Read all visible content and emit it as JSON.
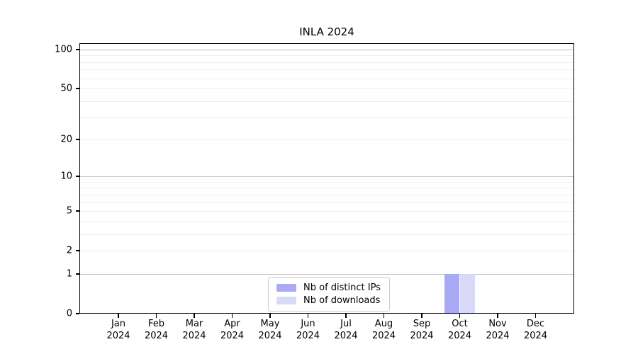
{
  "chart_data": {
    "type": "bar",
    "title": "INLA 2024",
    "categories": [
      "Jan\n2024",
      "Feb\n2024",
      "Mar\n2024",
      "Apr\n2024",
      "May\n2024",
      "Jun\n2024",
      "Jul\n2024",
      "Aug\n2024",
      "Sep\n2024",
      "Oct\n2024",
      "Nov\n2024",
      "Dec\n2024"
    ],
    "series": [
      {
        "name": "Nb of distinct IPs",
        "color": "#a9a9f4",
        "values": [
          0,
          0,
          0,
          0,
          0,
          0,
          0,
          0,
          0,
          1,
          0,
          0
        ]
      },
      {
        "name": "Nb of downloads",
        "color": "#dadaf8",
        "values": [
          0,
          0,
          0,
          0,
          0,
          0,
          0,
          0,
          0,
          1,
          0,
          0
        ]
      }
    ],
    "xlabel": "",
    "ylabel": "",
    "yscale": "log1p",
    "ylim": [
      0,
      112
    ],
    "yticks": [
      0,
      1,
      2,
      5,
      10,
      20,
      50,
      100
    ],
    "major_gridlines": [
      1,
      10,
      100
    ],
    "minor_gridlines": [
      2,
      3,
      4,
      5,
      6,
      7,
      8,
      9,
      20,
      30,
      40,
      50,
      60,
      70,
      80,
      90
    ],
    "grid": true,
    "legend": {
      "position": "lower center",
      "border_color": "#cccccc"
    },
    "colors": {
      "background": "#ffffff",
      "axis": "#000000",
      "major_grid": "#c2c2c2",
      "minor_grid": "#eeeeee"
    }
  }
}
